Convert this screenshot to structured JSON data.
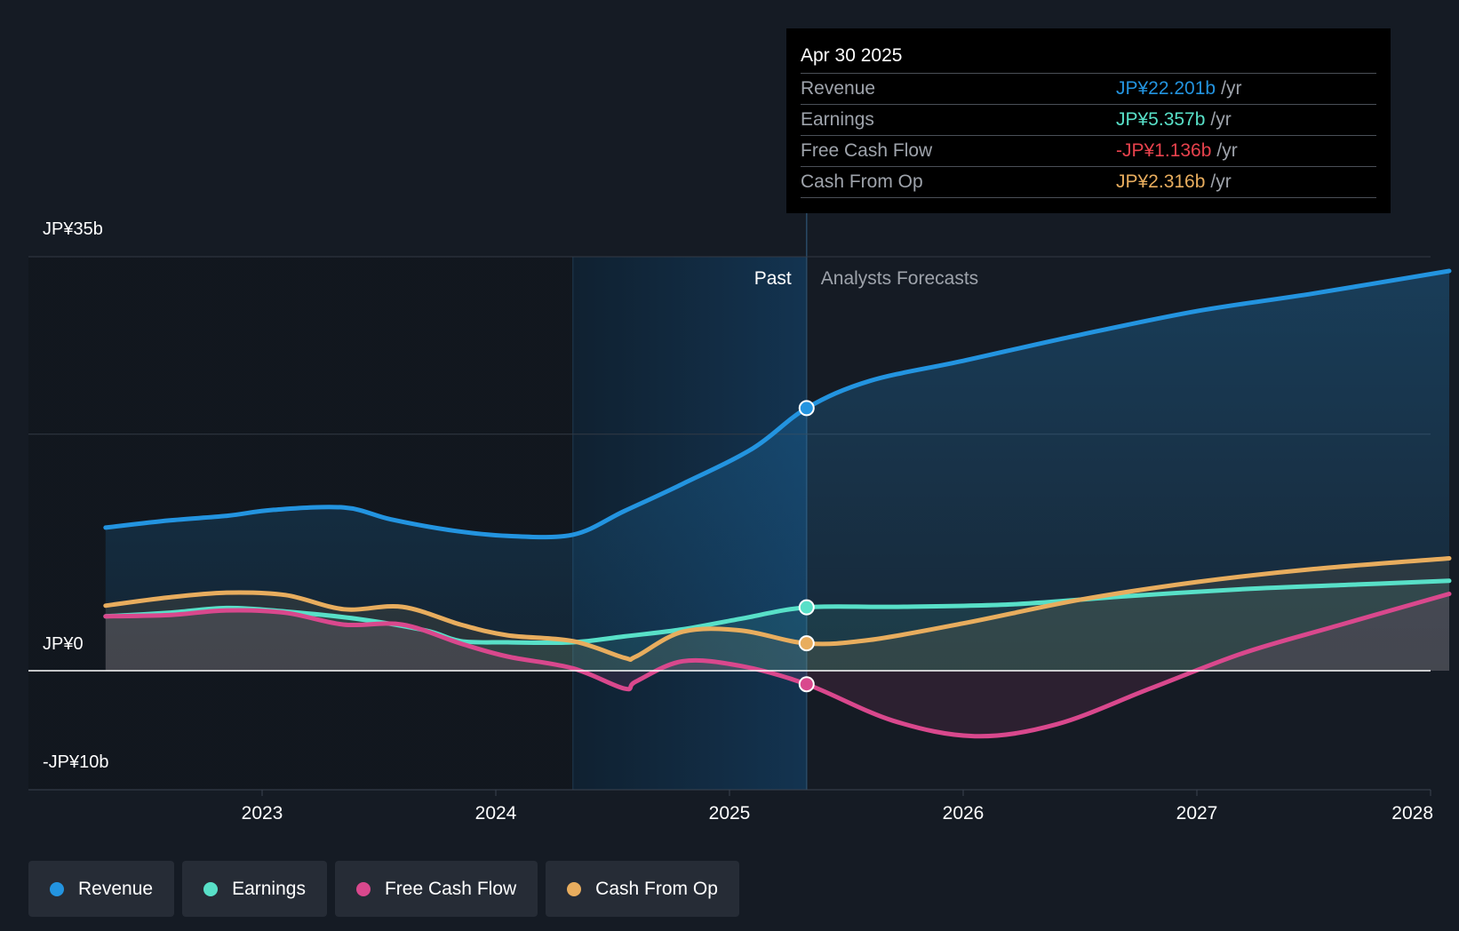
{
  "chart_data": {
    "type": "line",
    "title": "",
    "x_range": [
      2022.33,
      2028.08
    ],
    "ylim": [
      -10,
      35
    ],
    "y_tick_labels": [
      {
        "value": 35,
        "label": "JP¥35b"
      },
      {
        "value": 0,
        "label": "JP¥0"
      },
      {
        "value": -10,
        "label": "-JP¥10b"
      }
    ],
    "gridline_values": [
      35,
      20,
      -10
    ],
    "x_ticks": [
      {
        "value": 2023,
        "label": "2023"
      },
      {
        "value": 2024,
        "label": "2024"
      },
      {
        "value": 2025,
        "label": "2025"
      },
      {
        "value": 2026,
        "label": "2026"
      },
      {
        "value": 2027,
        "label": "2027"
      },
      {
        "value": 2028,
        "label": "2028"
      }
    ],
    "past_label": "Past",
    "forecast_label": "Analysts Forecasts",
    "highlight_range": [
      2024.33,
      2025.33
    ],
    "divider_x": 2025.33,
    "series": [
      {
        "name": "Revenue",
        "color": "#2394e0",
        "marker_x": 2025.33,
        "x": [
          2022.33,
          2022.6,
          2022.85,
          2023.05,
          2023.35,
          2023.55,
          2023.8,
          2024.05,
          2024.33,
          2024.55,
          2024.8,
          2025.1,
          2025.33,
          2025.6,
          2026.0,
          2026.5,
          2027.0,
          2027.5,
          2028.08
        ],
        "values": [
          12.1,
          12.7,
          13.1,
          13.6,
          13.8,
          12.8,
          11.9,
          11.4,
          11.5,
          13.5,
          15.8,
          18.8,
          22.2,
          24.5,
          26.2,
          28.4,
          30.4,
          31.9,
          33.8
        ]
      },
      {
        "name": "Earnings",
        "color": "#58e0c8",
        "marker_x": 2025.33,
        "x": [
          2022.33,
          2022.6,
          2022.85,
          2023.1,
          2023.4,
          2023.7,
          2023.85,
          2024.05,
          2024.33,
          2024.55,
          2024.8,
          2025.05,
          2025.33,
          2025.7,
          2026.2,
          2026.7,
          2027.2,
          2027.7,
          2028.08
        ],
        "values": [
          4.6,
          4.9,
          5.3,
          5.0,
          4.4,
          3.4,
          2.5,
          2.4,
          2.4,
          2.9,
          3.5,
          4.4,
          5.357,
          5.4,
          5.6,
          6.3,
          6.9,
          7.3,
          7.6
        ]
      },
      {
        "name": "Free Cash Flow",
        "color": "#d9488d",
        "marker_x": 2025.33,
        "x": [
          2022.33,
          2022.6,
          2022.85,
          2023.1,
          2023.35,
          2023.6,
          2023.85,
          2024.05,
          2024.33,
          2024.55,
          2024.6,
          2024.8,
          2025.05,
          2025.33,
          2025.7,
          2026.05,
          2026.4,
          2026.8,
          2027.2,
          2027.6,
          2028.08
        ],
        "values": [
          4.6,
          4.7,
          5.1,
          4.9,
          3.9,
          3.9,
          2.3,
          1.2,
          0.2,
          -1.5,
          -0.9,
          0.8,
          0.4,
          -1.136,
          -4.2,
          -5.5,
          -4.5,
          -1.5,
          1.5,
          3.8,
          6.5
        ]
      },
      {
        "name": "Cash From Op",
        "color": "#e8ad5e",
        "marker_x": 2025.33,
        "x": [
          2022.33,
          2022.6,
          2022.85,
          2023.1,
          2023.35,
          2023.6,
          2023.85,
          2024.05,
          2024.33,
          2024.55,
          2024.6,
          2024.8,
          2025.05,
          2025.33,
          2025.6,
          2026.0,
          2026.5,
          2027.0,
          2027.5,
          2028.08
        ],
        "values": [
          5.5,
          6.2,
          6.6,
          6.4,
          5.2,
          5.4,
          3.9,
          3.0,
          2.5,
          1.1,
          1.2,
          3.3,
          3.4,
          2.316,
          2.6,
          4.0,
          6.0,
          7.5,
          8.6,
          9.5
        ]
      }
    ]
  },
  "tooltip": {
    "date": "Apr 30 2025",
    "rows": [
      {
        "name": "Revenue",
        "value": "JP¥22.201b",
        "unit": "/yr",
        "color": "#2394e0"
      },
      {
        "name": "Earnings",
        "value": "JP¥5.357b",
        "unit": "/yr",
        "color": "#58e0c8"
      },
      {
        "name": "Free Cash Flow",
        "value": "-JP¥1.136b",
        "unit": "/yr",
        "color": "#e8424d"
      },
      {
        "name": "Cash From Op",
        "value": "JP¥2.316b",
        "unit": "/yr",
        "color": "#e8ad5e"
      }
    ]
  },
  "legend": [
    {
      "label": "Revenue",
      "color": "#2394e0"
    },
    {
      "label": "Earnings",
      "color": "#58e0c8"
    },
    {
      "label": "Free Cash Flow",
      "color": "#d9488d"
    },
    {
      "label": "Cash From Op",
      "color": "#e8ad5e"
    }
  ]
}
